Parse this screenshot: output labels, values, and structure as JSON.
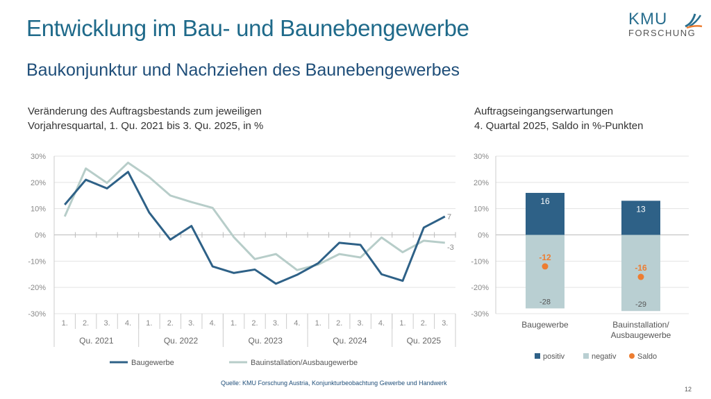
{
  "title": "Entwicklung im Bau- und Baunebengewerbe",
  "subtitle": "Baukonjunktur und Nachziehen des Baunebengewerbes",
  "logo": {
    "line1": "KMU",
    "line2": "FORSCHUNG"
  },
  "source": "Quelle: KMU Forschung Austria, Konjunkturbeobachtung Gewerbe und Handwerk",
  "page_number": "12",
  "chart_data": [
    {
      "type": "line",
      "title": "Veränderung des Auftragsbestands zum jeweiligen Vorjahresquartal, 1. Qu. 2021 bis 3. Qu. 2025, in %",
      "title_lines": [
        "Veränderung des Auftragsbestands zum jeweiligen",
        "Vorjahresquartal, 1. Qu. 2021 bis 3. Qu. 2025, in %"
      ],
      "categories": [
        "1.",
        "2.",
        "3.",
        "4.",
        "1.",
        "2.",
        "3.",
        "4.",
        "1.",
        "2.",
        "3.",
        "4.",
        "1.",
        "2.",
        "3.",
        "4.",
        "1.",
        "2.",
        "3."
      ],
      "groups": [
        {
          "label": "Qu. 2021",
          "count": 4
        },
        {
          "label": "Qu. 2022",
          "count": 4
        },
        {
          "label": "Qu. 2023",
          "count": 4
        },
        {
          "label": "Qu. 2024",
          "count": 4
        },
        {
          "label": "Qu. 2025",
          "count": 3
        }
      ],
      "yticks": [
        "30%",
        "20%",
        "10%",
        "0%",
        "-10%",
        "-20%",
        "-30%"
      ],
      "ylim": [
        -30,
        30
      ],
      "grid": true,
      "legend": "bottom",
      "series": [
        {
          "name": "Baugewerbe",
          "color": "#2e6187",
          "end_label": "7",
          "values": [
            11.5,
            21,
            17.7,
            24,
            8.5,
            -1.8,
            3.4,
            -12,
            -14.5,
            -13.2,
            -18.6,
            -15.2,
            -10.8,
            -3,
            -3.8,
            -15,
            -17.5,
            2.8,
            7
          ]
        },
        {
          "name": "Bauinstallation/Ausbaugewerbe",
          "color": "#b7cdc9",
          "end_label": "-3",
          "values": [
            7,
            25.3,
            19.8,
            27.5,
            22,
            15,
            12.5,
            10.3,
            -0.8,
            -9.2,
            -7.3,
            -13.4,
            -11.3,
            -7.3,
            -8.6,
            -1,
            -6.6,
            -2.2,
            -3
          ]
        }
      ]
    },
    {
      "type": "bar",
      "title": "Auftragseingangserwartungen 4. Quartal 2025, Saldo in %-Punkten",
      "title_lines": [
        "Auftragseingangserwartungen",
        "4. Quartal 2025, Saldo in %-Punkten"
      ],
      "categories": [
        [
          "Baugewerbe"
        ],
        [
          "Bauinstallation/",
          "Ausbaugewerbe"
        ]
      ],
      "yticks": [
        "30%",
        "20%",
        "10%",
        "0%",
        "-10%",
        "-20%",
        "-30%"
      ],
      "ylim": [
        -30,
        30
      ],
      "grid": true,
      "legend": "bottom",
      "series": [
        {
          "name": "positiv",
          "color": "#2e6187",
          "values": [
            16,
            13
          ]
        },
        {
          "name": "negativ",
          "color": "#b9cfd2",
          "values": [
            -28,
            -29
          ]
        },
        {
          "name": "Saldo",
          "color": "#ed7d31",
          "values": [
            -12,
            -16
          ]
        }
      ]
    }
  ]
}
